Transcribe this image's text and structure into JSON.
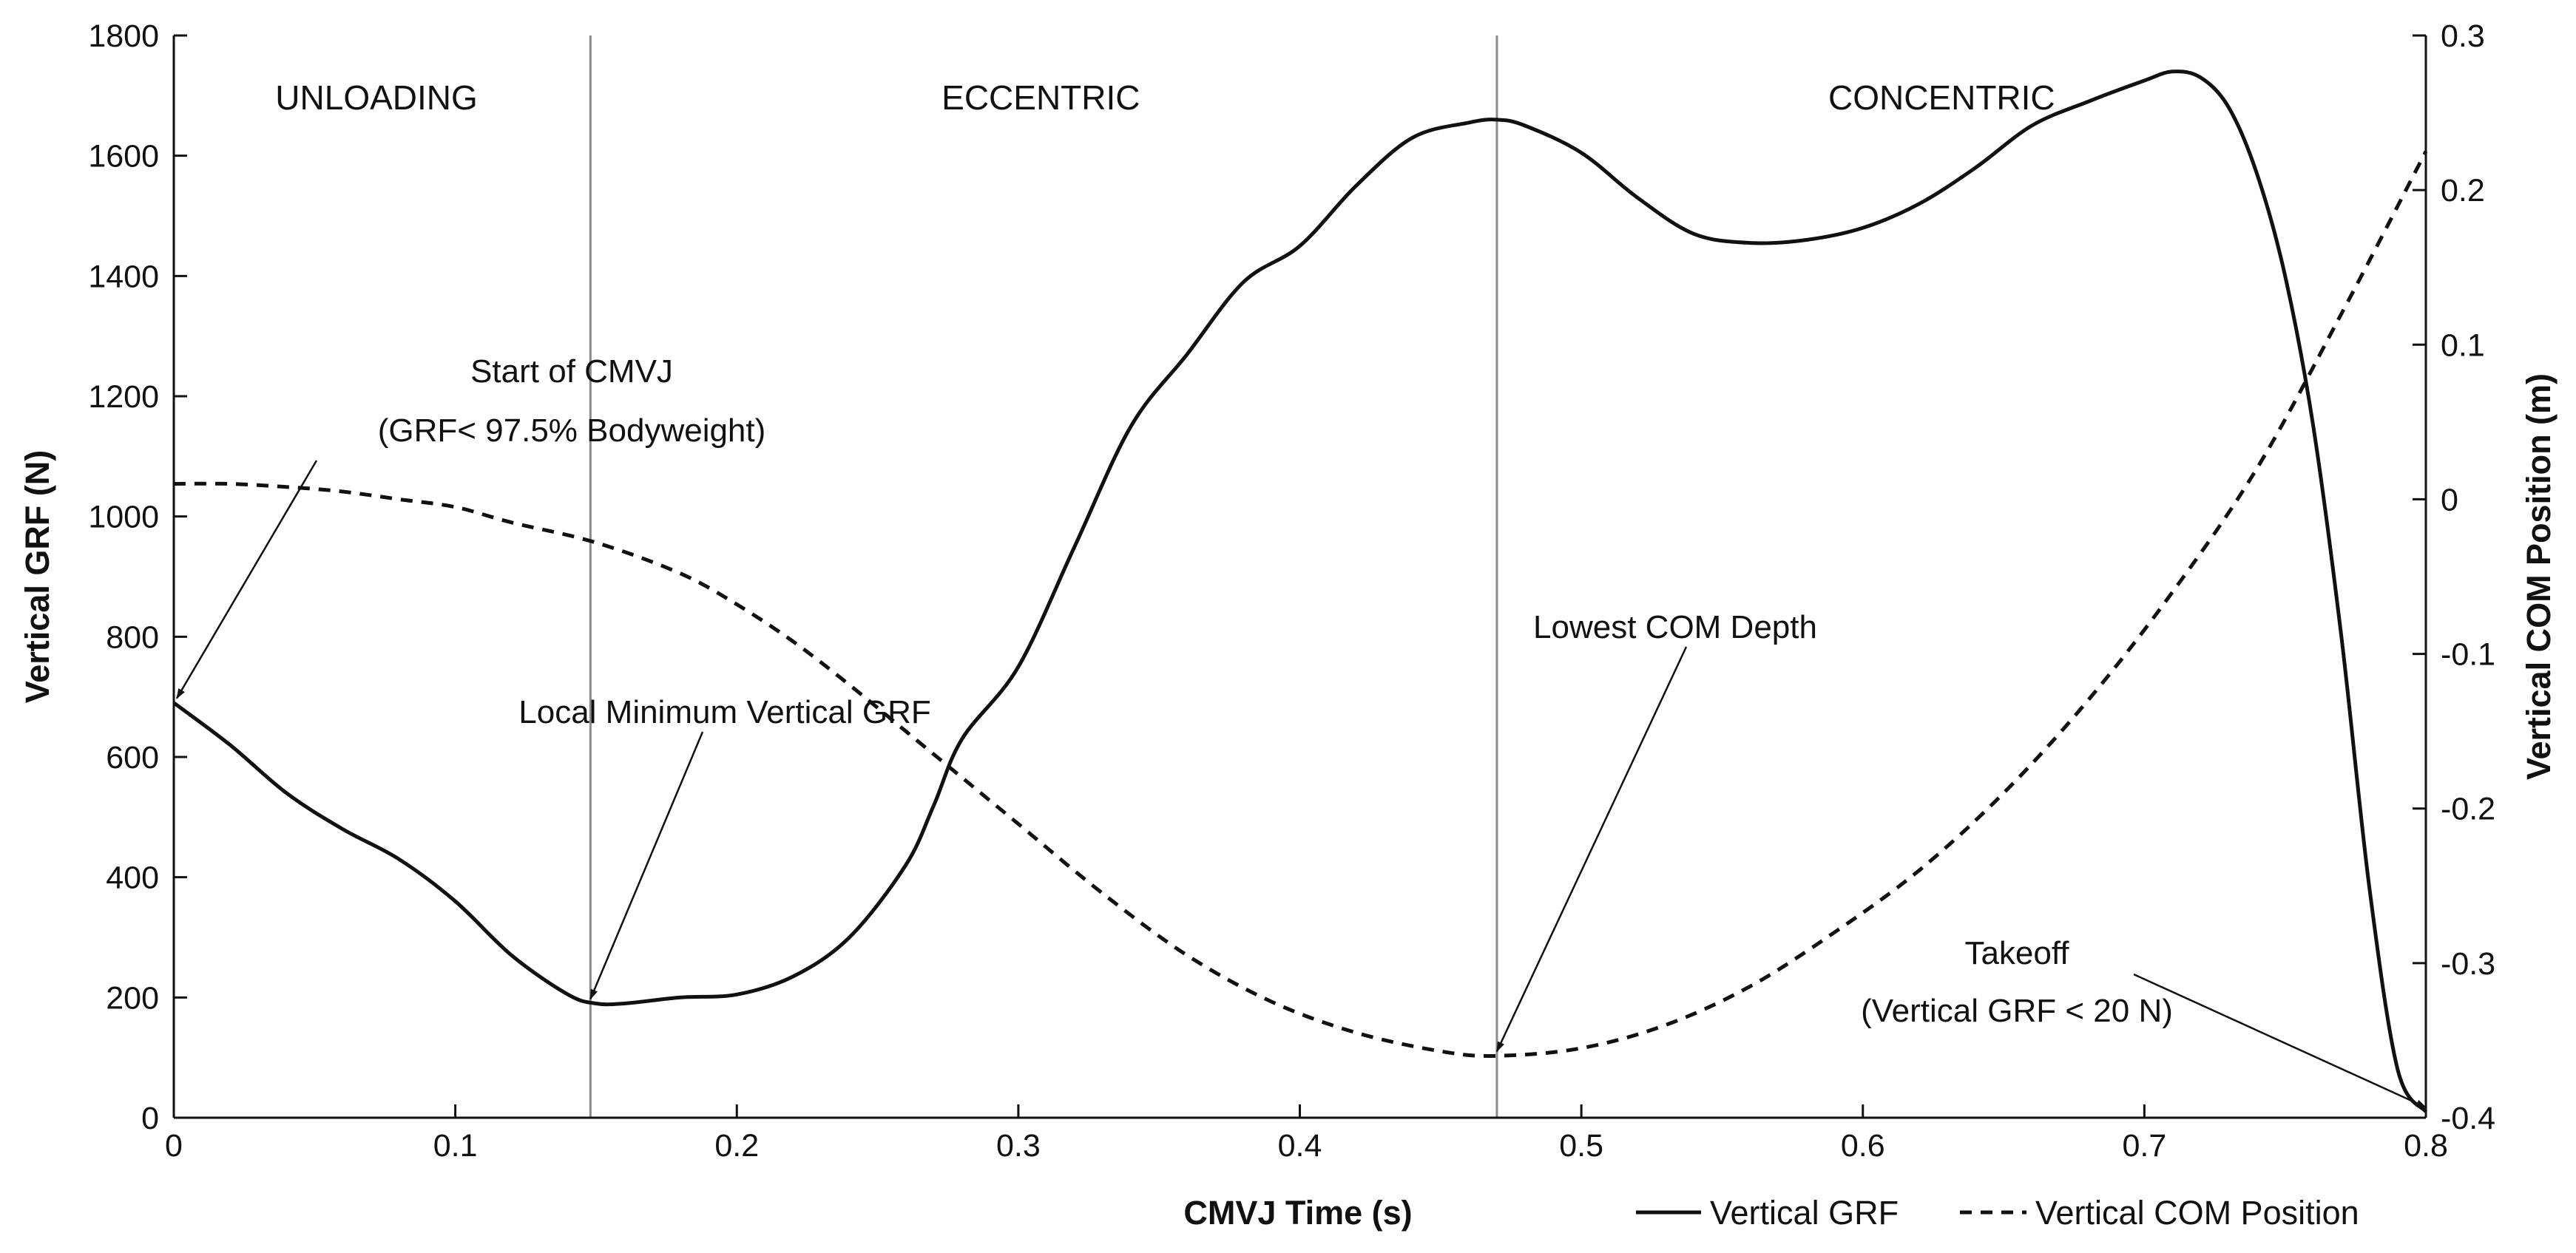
{
  "chart_data": {
    "type": "line",
    "title": "",
    "xlabel": "CMVJ Time (s)",
    "ylabel_left": "Vertical GRF (N)",
    "ylabel_right": "Vertical COM Position (m)",
    "xlim": [
      0,
      0.8
    ],
    "ylim_left": [
      0,
      1800
    ],
    "ylim_right": [
      -0.4,
      0.3
    ],
    "x_ticks": [
      0,
      0.1,
      0.2,
      0.3,
      0.4,
      0.5,
      0.6,
      0.7,
      0.8
    ],
    "x_tick_labels": [
      "0",
      "0.1",
      "0.2",
      "0.3",
      "0.4",
      "0.5",
      "0.6",
      "0.7",
      "0.8"
    ],
    "y_left_ticks": [
      0,
      200,
      400,
      600,
      800,
      1000,
      1200,
      1400,
      1600,
      1800
    ],
    "y_left_tick_labels": [
      "0",
      "200",
      "400",
      "600",
      "800",
      "1000",
      "1200",
      "1400",
      "1600",
      "1800"
    ],
    "y_right_ticks": [
      -0.4,
      -0.3,
      -0.2,
      -0.1,
      0,
      0.1,
      0.2,
      0.3
    ],
    "y_right_tick_labels": [
      "-0.4",
      "-0.3",
      "-0.2",
      "-0.1",
      "0",
      "0.1",
      "0.2",
      "0.3"
    ],
    "grid": false,
    "legend_placement": "bottom-right",
    "phase_boundaries": [
      0.148,
      0.47
    ],
    "phases": [
      {
        "label": "UNLOADING",
        "x": 0.072
      },
      {
        "label": "ECCENTRIC",
        "x": 0.308
      },
      {
        "label": "CONCENTRIC",
        "x": 0.628
      }
    ],
    "series": [
      {
        "name": "Vertical GRF",
        "axis": "left",
        "style": "solid",
        "x": [
          0,
          0.02,
          0.04,
          0.06,
          0.08,
          0.1,
          0.12,
          0.14,
          0.15,
          0.16,
          0.18,
          0.2,
          0.22,
          0.24,
          0.26,
          0.27,
          0.28,
          0.3,
          0.32,
          0.34,
          0.36,
          0.38,
          0.4,
          0.42,
          0.44,
          0.46,
          0.47,
          0.48,
          0.5,
          0.52,
          0.54,
          0.56,
          0.58,
          0.6,
          0.62,
          0.64,
          0.66,
          0.68,
          0.7,
          0.71,
          0.72,
          0.73,
          0.74,
          0.75,
          0.76,
          0.77,
          0.78,
          0.79,
          0.8
        ],
        "values": [
          690,
          620,
          540,
          480,
          430,
          360,
          270,
          205,
          190,
          190,
          200,
          205,
          235,
          300,
          420,
          520,
          630,
          750,
          950,
          1150,
          1270,
          1390,
          1450,
          1550,
          1630,
          1655,
          1660,
          1650,
          1605,
          1530,
          1470,
          1455,
          1460,
          1480,
          1520,
          1580,
          1650,
          1690,
          1725,
          1740,
          1730,
          1680,
          1570,
          1400,
          1150,
          800,
          380,
          80,
          10
        ]
      },
      {
        "name": "Vertical COM Position",
        "axis": "right",
        "style": "dashed",
        "x": [
          0,
          0.02,
          0.04,
          0.06,
          0.08,
          0.1,
          0.12,
          0.15,
          0.18,
          0.2,
          0.22,
          0.24,
          0.26,
          0.28,
          0.3,
          0.33,
          0.36,
          0.39,
          0.42,
          0.45,
          0.47,
          0.5,
          0.53,
          0.56,
          0.59,
          0.62,
          0.65,
          0.68,
          0.71,
          0.74,
          0.77,
          0.8
        ],
        "values": [
          0.01,
          0.01,
          0.008,
          0.005,
          0.0,
          -0.005,
          -0.015,
          -0.028,
          -0.048,
          -0.068,
          -0.092,
          -0.12,
          -0.15,
          -0.18,
          -0.21,
          -0.255,
          -0.295,
          -0.325,
          -0.345,
          -0.357,
          -0.36,
          -0.355,
          -0.34,
          -0.315,
          -0.28,
          -0.24,
          -0.19,
          -0.13,
          -0.06,
          0.02,
          0.12,
          0.225
        ]
      }
    ],
    "annotations": [
      {
        "lines": [
          "Start of CMVJ",
          "(GRF< 97.5% Bodyweight)"
        ],
        "target_x": 0.0,
        "target_y": 690,
        "axis": "left"
      },
      {
        "lines": [
          "Local Minimum Vertical GRF"
        ],
        "target_x": 0.148,
        "target_y": 190,
        "axis": "left"
      },
      {
        "lines": [
          "Lowest COM Depth"
        ],
        "target_x": 0.47,
        "target_y": -0.36,
        "axis": "right"
      },
      {
        "lines": [
          "Takeoff",
          "(Vertical GRF < 20 N)"
        ],
        "target_x": 0.8,
        "target_y": 10,
        "axis": "left"
      }
    ],
    "legend": [
      "Vertical GRF",
      "Vertical COM Position"
    ]
  }
}
